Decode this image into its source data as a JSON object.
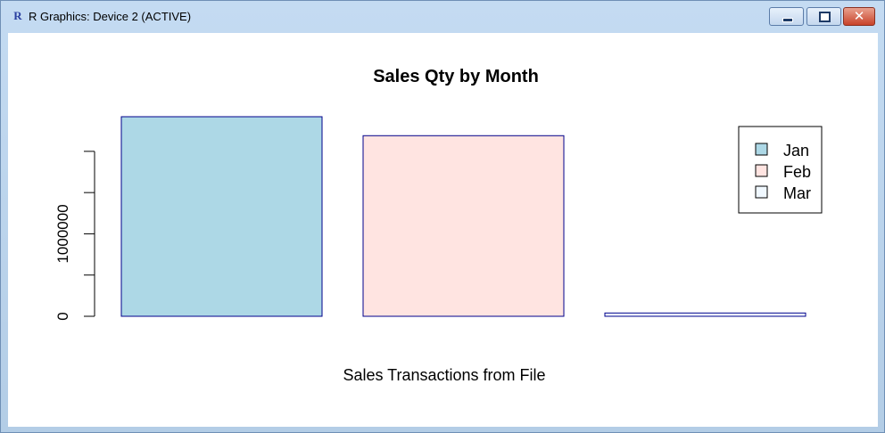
{
  "window": {
    "title": "R Graphics: Device 2 (ACTIVE)",
    "app_icon": "r-logo-icon",
    "controls": {
      "minimize": "minimize-icon",
      "maximize": "maximize-icon",
      "close": "close-icon",
      "close_glyph": "✕"
    }
  },
  "colors": {
    "bar_fill": [
      "#add8e6",
      "#ffe4e1",
      "#f0f8ff"
    ],
    "bar_border": "#00008b"
  },
  "chart_data": {
    "type": "bar",
    "title": "Sales Qty by Month",
    "xlabel": "Sales Transactions from File",
    "ylabel": "",
    "categories": [
      "Jan",
      "Feb",
      "Mar"
    ],
    "values": [
      2420000,
      2190000,
      40000
    ],
    "ylim": [
      0,
      2420000
    ],
    "y_ticks": [
      0,
      500000,
      1000000,
      1500000,
      2000000
    ],
    "y_tick_labels": [
      "0",
      "",
      "1000000",
      "",
      ""
    ],
    "legend": {
      "placement": "top-right",
      "entries": [
        "Jan",
        "Feb",
        "Mar"
      ]
    },
    "grid": false
  }
}
